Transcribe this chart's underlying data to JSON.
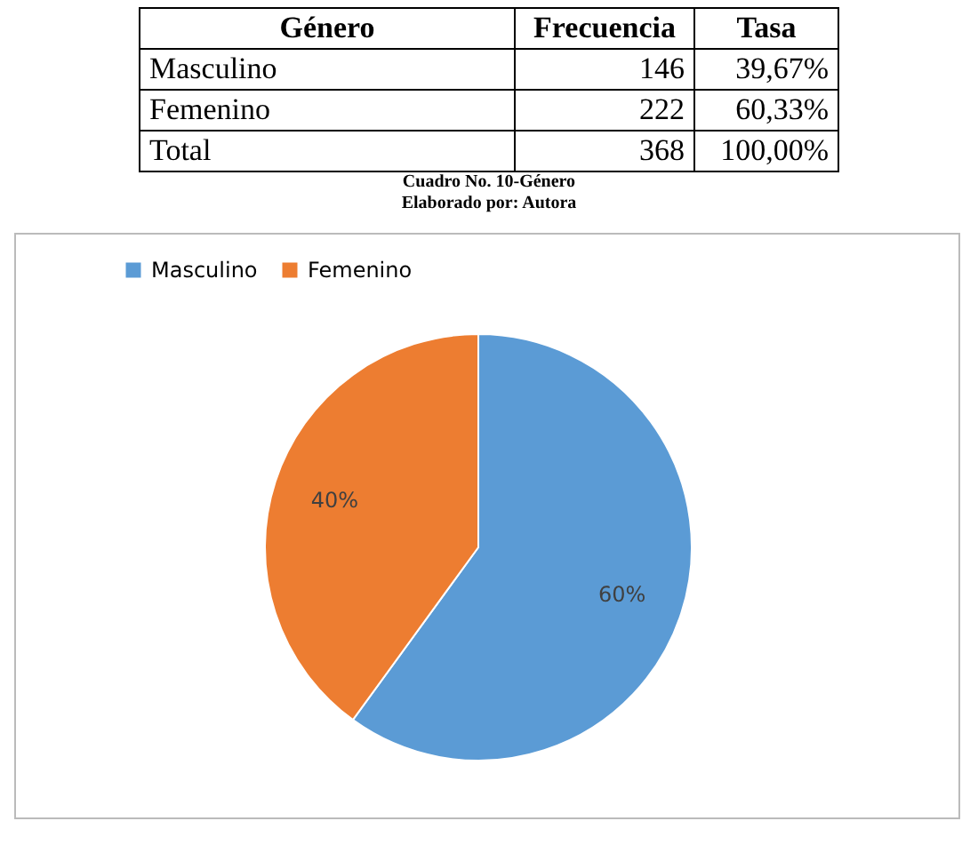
{
  "chart_data": [
    {
      "type": "other",
      "title": "Cuadro No. 10-Género",
      "subtitle": "Elaborado por: Autora",
      "annotations": [
        "Género",
        "Frecuencia",
        "Tasa",
        "Masculino",
        "146",
        "39,67%",
        "Femenino",
        "222",
        "60,33%",
        "Total",
        "368",
        "100,00%"
      ]
    },
    {
      "type": "pie",
      "categories": [
        "Masculino",
        "Femenino"
      ],
      "values": [
        60,
        40
      ],
      "colors": [
        "#5b9bd5",
        "#ed7d31"
      ],
      "value_labels": [
        "60%",
        "40%"
      ],
      "legend": "top"
    }
  ]
}
